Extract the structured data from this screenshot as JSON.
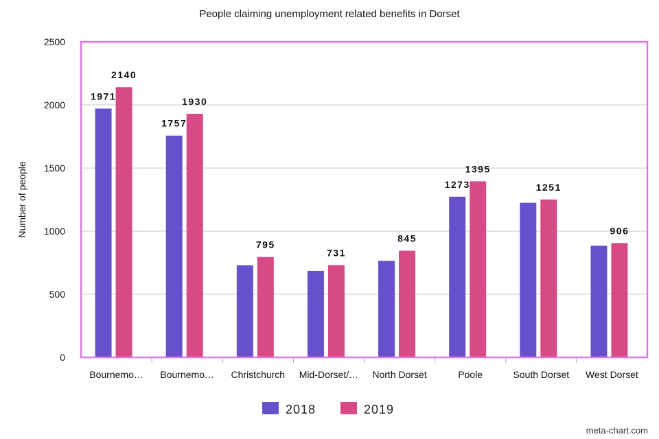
{
  "chart_data": {
    "type": "bar",
    "title": "People claiming unemployment related benefits in Dorset",
    "xlabel": "",
    "ylabel": "Number of people",
    "ylim": [
      0,
      2500
    ],
    "yticks": [
      "0",
      "500",
      "1000",
      "1500",
      "2000",
      "2500"
    ],
    "categories": [
      "Bournemo…",
      "Bournemo…",
      "Christchurch",
      "Mid-Dorset/…",
      "North Dorset",
      "Poole",
      "South Dorset",
      "West Dorset"
    ],
    "series": [
      {
        "name": "2018",
        "color": "#6650cc",
        "values": [
          1971,
          1757,
          730,
          685,
          765,
          1273,
          1225,
          885
        ],
        "labels": [
          "1971",
          "1757",
          null,
          null,
          null,
          "1273",
          null,
          null
        ]
      },
      {
        "name": "2019",
        "color": "#d84a85",
        "values": [
          2140,
          1930,
          795,
          731,
          845,
          1395,
          1251,
          906
        ],
        "labels": [
          "2140",
          "1930",
          "795",
          "731",
          "845",
          "1395",
          "1251",
          "906"
        ]
      }
    ],
    "grid": true,
    "legend_position": "bottom-center",
    "plot_border_color": "#dd77e6"
  },
  "watermark": "meta-chart.com"
}
